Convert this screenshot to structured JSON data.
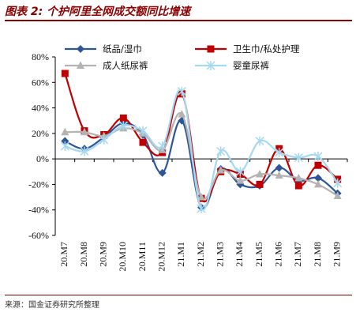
{
  "title": "图表 2: 个护阿里全网成交额同比增速",
  "source": "来源：国金证券研究所整理",
  "chart_data": {
    "type": "line",
    "categories": [
      "20.M7",
      "20.M8",
      "20.M9",
      "20.M10",
      "20.M11",
      "20.M12",
      "21.M1",
      "21.M2",
      "21.M3",
      "21.M4",
      "21.M5",
      "21.M6",
      "21.M7",
      "21.M8",
      "21.M9"
    ],
    "ylim": [
      -0.6,
      0.8
    ],
    "yticks": [
      "-60%",
      "-40%",
      "-20%",
      "0%",
      "20%",
      "40%",
      "60%",
      "80%"
    ],
    "grid": false,
    "legend_position": "top",
    "series": [
      {
        "name": "纸品/湿巾",
        "color": "#2e5597",
        "marker": "diamond",
        "values": [
          0.14,
          0.08,
          0.17,
          0.28,
          0.19,
          -0.11,
          0.3,
          -0.38,
          -0.08,
          -0.2,
          -0.21,
          -0.07,
          -0.17,
          -0.15,
          -0.27
        ]
      },
      {
        "name": "卫生巾/私处护理",
        "color": "#c00000",
        "marker": "square",
        "values": [
          0.67,
          0.22,
          0.19,
          0.32,
          0.13,
          0.05,
          0.51,
          -0.31,
          -0.1,
          -0.12,
          -0.2,
          0.08,
          -0.21,
          -0.05,
          -0.16
        ]
      },
      {
        "name": "成人纸尿裤",
        "color": "#b3b3b3",
        "marker": "triangle",
        "values": [
          0.21,
          0.21,
          0.18,
          0.24,
          0.2,
          0.07,
          0.35,
          -0.3,
          -0.09,
          -0.17,
          -0.12,
          -0.13,
          -0.15,
          -0.2,
          -0.29
        ]
      },
      {
        "name": "婴童尿裤",
        "color": "#a6d8f0",
        "marker": "star",
        "values": [
          0.1,
          0.06,
          0.15,
          0.26,
          0.22,
          0.1,
          0.53,
          -0.39,
          0.06,
          -0.1,
          0.14,
          0.05,
          0.01,
          0.02,
          -0.19
        ]
      }
    ]
  }
}
